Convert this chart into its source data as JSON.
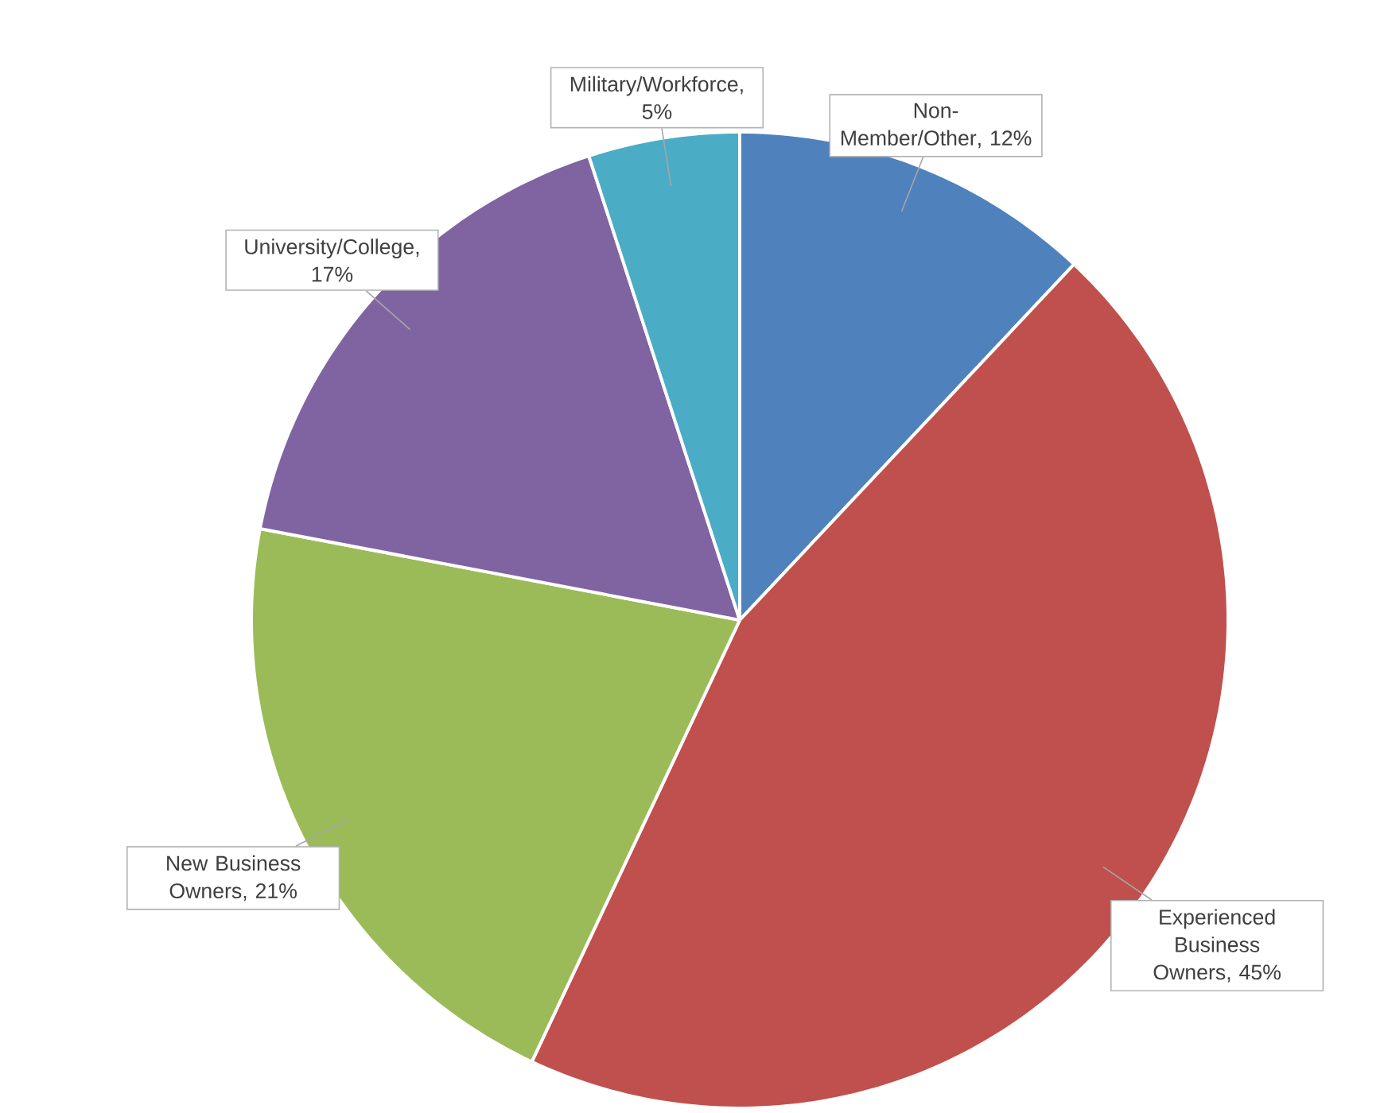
{
  "chart_data": {
    "type": "pie",
    "categories": [
      "Non-Member/Other",
      "Experienced Business Owners",
      "New Business Owners",
      "University/College",
      "Military/Workforce"
    ],
    "values": [
      12,
      45,
      21,
      17,
      5
    ],
    "value_labels": [
      ", 12%",
      ", 45%",
      ", 21%",
      ", 17%",
      ", 5%"
    ],
    "colors": [
      "#4f81bd",
      "#c0504d",
      "#9bbb59",
      "#8064a2",
      "#4bacc6"
    ]
  }
}
